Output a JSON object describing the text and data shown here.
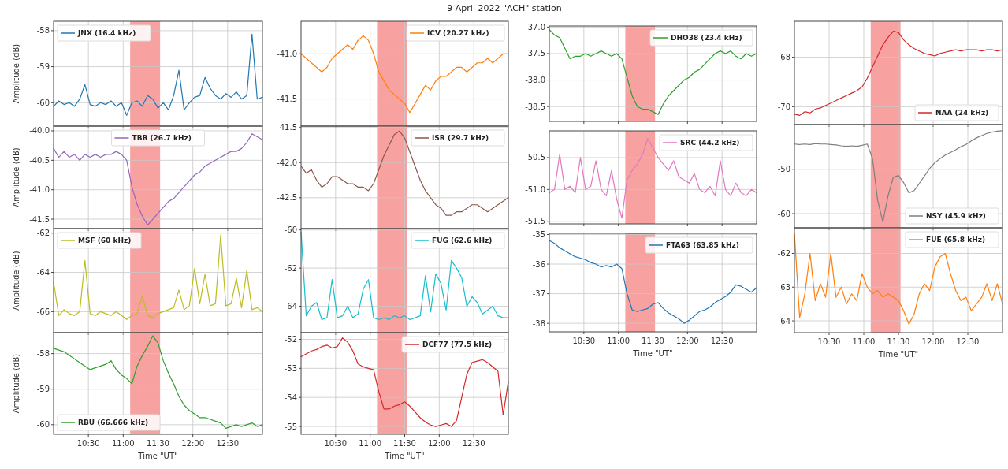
{
  "chart_data": [
    {
      "type": "line",
      "ylabel": "Amplitude (dB)",
      "x": [
        10,
        10.075,
        10.15,
        10.225,
        10.3,
        10.375,
        10.45,
        10.525,
        10.6,
        10.675,
        10.75,
        10.825,
        10.9,
        10.975,
        11.05,
        11.125,
        11.2,
        11.275,
        11.35,
        11.425,
        11.5,
        11.575,
        11.65,
        11.725,
        11.8,
        11.875,
        11.95,
        12.025,
        12.1,
        12.175,
        12.25,
        12.325,
        12.4,
        12.475,
        12.55,
        12.625,
        12.7,
        12.775,
        12.85,
        12.925,
        13.0
      ],
      "xlim": [
        10,
        13
      ],
      "xticks": [
        {
          "value": 10.5,
          "label": null
        },
        {
          "value": 11,
          "label": null
        },
        {
          "value": 11.5,
          "label": null
        },
        {
          "value": 12,
          "label": null
        },
        {
          "value": 12.5,
          "label": null
        }
      ],
      "ylim": [
        -60.65,
        -57.74
      ],
      "yticks": [
        -60,
        -59,
        -58
      ],
      "grid": true,
      "legend": "top left",
      "tick_labels": "y",
      "bands": [
        {
          "axis": "x",
          "from": 11.1,
          "to": 11.53,
          "color": "#f7a1a1"
        }
      ],
      "series": [
        {
          "name": "JNX (16.4 kHz)",
          "color": "#1f77b4",
          "values": [
            -60.1,
            -59.95,
            -60.05,
            -60.0,
            -60.1,
            -59.9,
            -59.5,
            -60.05,
            -60.1,
            -60.0,
            -60.05,
            -59.95,
            -60.1,
            -60.0,
            -60.35,
            -60.0,
            -59.95,
            -60.1,
            -59.8,
            -59.9,
            -60.15,
            -60.0,
            -60.2,
            -59.8,
            -59.1,
            -60.2,
            -60.0,
            -59.85,
            -59.8,
            -59.3,
            -59.6,
            -59.8,
            -59.9,
            -59.75,
            -59.85,
            -59.7,
            -59.9,
            -59.8,
            -58.1,
            -59.9,
            -59.85
          ]
        }
      ]
    },
    {
      "type": "line",
      "ylabel": "Amplitude (dB)",
      "x": [
        10,
        10.075,
        10.15,
        10.225,
        10.3,
        10.375,
        10.45,
        10.525,
        10.6,
        10.675,
        10.75,
        10.825,
        10.9,
        10.975,
        11.05,
        11.125,
        11.2,
        11.275,
        11.35,
        11.425,
        11.5,
        11.575,
        11.65,
        11.725,
        11.8,
        11.875,
        11.95,
        12.025,
        12.1,
        12.175,
        12.25,
        12.325,
        12.4,
        12.475,
        12.55,
        12.625,
        12.7,
        12.775,
        12.85,
        12.925,
        13.0
      ],
      "xlim": [
        10,
        13
      ],
      "xticks": [
        {
          "value": 10.5,
          "label": null
        },
        {
          "value": 11,
          "label": null
        },
        {
          "value": 11.5,
          "label": null
        },
        {
          "value": 12,
          "label": null
        },
        {
          "value": 12.5,
          "label": null
        }
      ],
      "ylim": [
        -41.66,
        -39.92
      ],
      "yticks": [
        -41.5,
        {
          "value": -41,
          "label": "-41.0"
        },
        -40.5,
        {
          "value": -40,
          "label": "-40.0"
        }
      ],
      "grid": true,
      "legend": "top",
      "tick_labels": "y",
      "bands": [
        {
          "axis": "x",
          "from": 11.1,
          "to": 11.53,
          "color": "#f7a1a1"
        }
      ],
      "series": [
        {
          "name": "TBB (26.7 kHz)",
          "color": "#9467bd",
          "values": [
            -40.3,
            -40.45,
            -40.35,
            -40.45,
            -40.4,
            -40.5,
            -40.4,
            -40.45,
            -40.4,
            -40.45,
            -40.4,
            -40.4,
            -40.35,
            -40.4,
            -40.5,
            -40.95,
            -41.25,
            -41.45,
            -41.6,
            -41.5,
            -41.4,
            -41.3,
            -41.2,
            -41.15,
            -41.05,
            -40.95,
            -40.85,
            -40.75,
            -40.7,
            -40.6,
            -40.55,
            -40.5,
            -40.45,
            -40.4,
            -40.35,
            -40.35,
            -40.3,
            -40.2,
            -40.05,
            -40.1,
            -40.15
          ]
        }
      ]
    },
    {
      "type": "line",
      "ylabel": "Amplitude (dB)",
      "x": [
        10,
        10.075,
        10.15,
        10.225,
        10.3,
        10.375,
        10.45,
        10.525,
        10.6,
        10.675,
        10.75,
        10.825,
        10.9,
        10.975,
        11.05,
        11.125,
        11.2,
        11.275,
        11.35,
        11.425,
        11.5,
        11.575,
        11.65,
        11.725,
        11.8,
        11.875,
        11.95,
        12.025,
        12.1,
        12.175,
        12.25,
        12.325,
        12.4,
        12.475,
        12.55,
        12.625,
        12.7,
        12.775,
        12.85,
        12.925,
        13.0
      ],
      "xlim": [
        10,
        13
      ],
      "xticks": [
        {
          "value": 10.5,
          "label": null
        },
        {
          "value": 11,
          "label": null
        },
        {
          "value": 11.5,
          "label": null
        },
        {
          "value": 12,
          "label": null
        },
        {
          "value": 12.5,
          "label": null
        }
      ],
      "ylim": [
        -67.07,
        -61.77
      ],
      "yticks": [
        -66,
        -64,
        -62
      ],
      "grid": true,
      "legend": "top left",
      "tick_labels": "y",
      "bands": [
        {
          "axis": "x",
          "from": 11.1,
          "to": 11.53,
          "color": "#f7a1a1"
        }
      ],
      "series": [
        {
          "name": "MSF (60 kHz)",
          "color": "#bcbd22",
          "values": [
            -64.5,
            -66.2,
            -65.9,
            -66.1,
            -66.2,
            -66.0,
            -63.4,
            -66.1,
            -66.2,
            -66.0,
            -66.1,
            -66.2,
            -66.0,
            -66.2,
            -66.4,
            -66.2,
            -66.1,
            -65.2,
            -66.2,
            -66.3,
            -66.1,
            -66.0,
            -65.9,
            -65.8,
            -64.9,
            -65.9,
            -65.7,
            -63.8,
            -65.6,
            -64.1,
            -65.7,
            -65.6,
            -62.1,
            -65.7,
            -65.6,
            -64.3,
            -65.8,
            -63.9,
            -65.9,
            -65.8,
            -66.0
          ]
        }
      ]
    },
    {
      "type": "line",
      "ylabel": "Amplitude (dB)",
      "xlabel": "Time \"UT\"",
      "x": [
        10,
        10.075,
        10.15,
        10.225,
        10.3,
        10.375,
        10.45,
        10.525,
        10.6,
        10.675,
        10.75,
        10.825,
        10.9,
        10.975,
        11.05,
        11.125,
        11.2,
        11.275,
        11.35,
        11.425,
        11.5,
        11.575,
        11.65,
        11.725,
        11.8,
        11.875,
        11.95,
        12.025,
        12.1,
        12.175,
        12.25,
        12.325,
        12.4,
        12.475,
        12.55,
        12.625,
        12.7,
        12.775,
        12.85,
        12.925,
        13.0
      ],
      "xlim": [
        10,
        13
      ],
      "xticks": [
        {
          "value": 10.5,
          "label": "10:30"
        },
        {
          "value": 11,
          "label": "11:00"
        },
        {
          "value": 11.5,
          "label": "11:30"
        },
        {
          "value": 12,
          "label": "12:00"
        },
        {
          "value": 12.5,
          "label": "12:30"
        }
      ],
      "ylim": [
        -60.27,
        -57.41
      ],
      "yticks": [
        -60,
        -59,
        -58
      ],
      "grid": true,
      "legend": "bottom left",
      "bands": [
        {
          "axis": "x",
          "from": 11.1,
          "to": 11.53,
          "color": "#f7a1a1"
        }
      ],
      "series": [
        {
          "name": "RBU (66.666 kHz)",
          "color": "#2ca02c",
          "values": [
            -57.85,
            -57.9,
            -57.95,
            -58.05,
            -58.15,
            -58.25,
            -58.35,
            -58.45,
            -58.4,
            -58.35,
            -58.3,
            -58.2,
            -58.45,
            -58.6,
            -58.7,
            -58.85,
            -58.35,
            -58.05,
            -57.8,
            -57.5,
            -57.7,
            -58.2,
            -58.55,
            -58.85,
            -59.2,
            -59.45,
            -59.6,
            -59.7,
            -59.8,
            -59.8,
            -59.85,
            -59.9,
            -59.95,
            -60.1,
            -60.05,
            -60.0,
            -60.05,
            -60.0,
            -59.95,
            -60.05,
            -60.0
          ]
        }
      ]
    },
    {
      "type": "line",
      "title": "9 April 2022 \"ACH\" station",
      "x": [
        10,
        10.075,
        10.15,
        10.225,
        10.3,
        10.375,
        10.45,
        10.525,
        10.6,
        10.675,
        10.75,
        10.825,
        10.9,
        10.975,
        11.05,
        11.125,
        11.2,
        11.275,
        11.35,
        11.425,
        11.5,
        11.575,
        11.65,
        11.725,
        11.8,
        11.875,
        11.95,
        12.025,
        12.1,
        12.175,
        12.25,
        12.325,
        12.4,
        12.475,
        12.55,
        12.625,
        12.7,
        12.775,
        12.85,
        12.925,
        13.0
      ],
      "xlim": [
        10,
        13
      ],
      "xticks": [
        {
          "value": 10.5,
          "label": null
        },
        {
          "value": 11,
          "label": null
        },
        {
          "value": 11.5,
          "label": null
        },
        {
          "value": 12,
          "label": null
        },
        {
          "value": 12.5,
          "label": null
        }
      ],
      "ylim": [
        -41.8,
        -40.64
      ],
      "yticks": [
        -41.5,
        {
          "value": -41,
          "label": "-41.0"
        }
      ],
      "grid": true,
      "legend": "top right",
      "tick_labels": "y",
      "bands": [
        {
          "axis": "x",
          "from": 11.1,
          "to": 11.53,
          "color": "#f7a1a1"
        }
      ],
      "series": [
        {
          "name": "ICV (20.27 kHz)",
          "color": "#ff7f0e",
          "values": [
            -41.0,
            -41.05,
            -41.1,
            -41.15,
            -41.2,
            -41.15,
            -41.05,
            -41.0,
            -40.95,
            -40.9,
            -40.95,
            -40.85,
            -40.8,
            -40.85,
            -41.0,
            -41.2,
            -41.3,
            -41.4,
            -41.45,
            -41.5,
            -41.55,
            -41.65,
            -41.55,
            -41.45,
            -41.35,
            -41.4,
            -41.3,
            -41.25,
            -41.25,
            -41.2,
            -41.15,
            -41.15,
            -41.2,
            -41.15,
            -41.1,
            -41.1,
            -41.05,
            -41.1,
            -41.05,
            -41.0,
            -41.0
          ]
        }
      ]
    },
    {
      "type": "line",
      "x": [
        10,
        10.075,
        10.15,
        10.225,
        10.3,
        10.375,
        10.45,
        10.525,
        10.6,
        10.675,
        10.75,
        10.825,
        10.9,
        10.975,
        11.05,
        11.125,
        11.2,
        11.275,
        11.35,
        11.425,
        11.5,
        11.575,
        11.65,
        11.725,
        11.8,
        11.875,
        11.95,
        12.025,
        12.1,
        12.175,
        12.25,
        12.325,
        12.4,
        12.475,
        12.55,
        12.625,
        12.7,
        12.775,
        12.85,
        12.925,
        13.0
      ],
      "xlim": [
        10,
        13
      ],
      "xticks": [
        {
          "value": 10.5,
          "label": null
        },
        {
          "value": 11,
          "label": null
        },
        {
          "value": 11.5,
          "label": null
        },
        {
          "value": 12,
          "label": null
        },
        {
          "value": 12.5,
          "label": null
        }
      ],
      "ylim": [
        -42.94,
        -41.48
      ],
      "yticks": [
        -42.5,
        {
          "value": -42,
          "label": "-42.0"
        },
        -41.5
      ],
      "grid": true,
      "legend": "top right",
      "tick_labels": "y",
      "bands": [
        {
          "axis": "x",
          "from": 11.1,
          "to": 11.53,
          "color": "#f7a1a1"
        }
      ],
      "series": [
        {
          "name": "ISR (29.7 kHz)",
          "color": "#8c564b",
          "values": [
            -42.05,
            -42.15,
            -42.1,
            -42.25,
            -42.35,
            -42.3,
            -42.2,
            -42.2,
            -42.25,
            -42.3,
            -42.3,
            -42.35,
            -42.35,
            -42.4,
            -42.3,
            -42.1,
            -41.9,
            -41.75,
            -41.6,
            -41.55,
            -41.65,
            -41.85,
            -42.05,
            -42.25,
            -42.4,
            -42.5,
            -42.6,
            -42.65,
            -42.75,
            -42.75,
            -42.7,
            -42.7,
            -42.65,
            -42.6,
            -42.6,
            -42.65,
            -42.7,
            -42.65,
            -42.6,
            -42.55,
            -42.5
          ]
        }
      ]
    },
    {
      "type": "line",
      "x": [
        10,
        10.075,
        10.15,
        10.225,
        10.3,
        10.375,
        10.45,
        10.525,
        10.6,
        10.675,
        10.75,
        10.825,
        10.9,
        10.975,
        11.05,
        11.125,
        11.2,
        11.275,
        11.35,
        11.425,
        11.5,
        11.575,
        11.65,
        11.725,
        11.8,
        11.875,
        11.95,
        12.025,
        12.1,
        12.175,
        12.25,
        12.325,
        12.4,
        12.475,
        12.55,
        12.625,
        12.7,
        12.775,
        12.85,
        12.925,
        13.0
      ],
      "xlim": [
        10,
        13
      ],
      "xticks": [
        {
          "value": 10.5,
          "label": null
        },
        {
          "value": 11,
          "label": null
        },
        {
          "value": 11.5,
          "label": null
        },
        {
          "value": 12,
          "label": null
        },
        {
          "value": 12.5,
          "label": null
        }
      ],
      "ylim": [
        -65.38,
        -59.93
      ],
      "yticks": [
        -64,
        -62,
        -60
      ],
      "grid": true,
      "legend": "top right",
      "tick_labels": "y",
      "bands": [
        {
          "axis": "x",
          "from": 11.1,
          "to": 11.53,
          "color": "#f7a1a1"
        }
      ],
      "series": [
        {
          "name": "FUG (62.6 kHz)",
          "color": "#17becf",
          "values": [
            -60.1,
            -64.5,
            -64.0,
            -63.8,
            -64.7,
            -64.6,
            -62.6,
            -64.6,
            -64.5,
            -64.0,
            -64.6,
            -64.4,
            -63.1,
            -62.6,
            -64.6,
            -64.7,
            -64.6,
            -64.7,
            -64.5,
            -64.6,
            -64.5,
            -64.7,
            -64.6,
            -64.5,
            -62.4,
            -64.3,
            -62.3,
            -62.8,
            -64.2,
            -61.6,
            -62.0,
            -62.5,
            -64.0,
            -63.5,
            -63.8,
            -64.4,
            -64.2,
            -64.0,
            -64.5,
            -64.6,
            -64.6
          ]
        }
      ]
    },
    {
      "type": "line",
      "xlabel": "Time \"UT\"",
      "x": [
        10,
        10.075,
        10.15,
        10.225,
        10.3,
        10.375,
        10.45,
        10.525,
        10.6,
        10.675,
        10.75,
        10.825,
        10.9,
        10.975,
        11.05,
        11.125,
        11.2,
        11.275,
        11.35,
        11.425,
        11.5,
        11.575,
        11.65,
        11.725,
        11.8,
        11.875,
        11.95,
        12.025,
        12.1,
        12.175,
        12.25,
        12.325,
        12.4,
        12.475,
        12.55,
        12.625,
        12.7,
        12.775,
        12.85,
        12.925,
        13.0
      ],
      "xlim": [
        10,
        13
      ],
      "xticks": [
        {
          "value": 10.5,
          "label": "10:30"
        },
        {
          "value": 11,
          "label": "11:00"
        },
        {
          "value": 11.5,
          "label": "11:30"
        },
        {
          "value": 12,
          "label": "12:00"
        },
        {
          "value": 12.5,
          "label": "12:30"
        }
      ],
      "ylim": [
        -55.27,
        -51.77
      ],
      "yticks": [
        -55,
        -54,
        -53,
        -52
      ],
      "grid": true,
      "legend": "top right",
      "bands": [
        {
          "axis": "x",
          "from": 11.1,
          "to": 11.53,
          "color": "#f7a1a1"
        }
      ],
      "series": [
        {
          "name": "DCF77 (77.5 kHz)",
          "color": "#d62728",
          "values": [
            -52.6,
            -52.5,
            -52.4,
            -52.35,
            -52.25,
            -52.2,
            -52.3,
            -52.25,
            -51.95,
            -52.1,
            -52.4,
            -52.85,
            -52.95,
            -53.0,
            -53.05,
            -53.8,
            -54.4,
            -54.4,
            -54.3,
            -54.25,
            -54.15,
            -54.3,
            -54.5,
            -54.7,
            -54.85,
            -54.95,
            -55.0,
            -54.95,
            -54.9,
            -55.0,
            -54.8,
            -54.0,
            -53.2,
            -52.8,
            -52.75,
            -52.7,
            -52.8,
            -52.95,
            -53.1,
            -54.6,
            -53.45
          ]
        }
      ]
    },
    {
      "type": "line",
      "x": [
        10,
        10.075,
        10.15,
        10.225,
        10.3,
        10.375,
        10.45,
        10.525,
        10.6,
        10.675,
        10.75,
        10.825,
        10.9,
        10.975,
        11.05,
        11.125,
        11.2,
        11.275,
        11.35,
        11.425,
        11.5,
        11.575,
        11.65,
        11.725,
        11.8,
        11.875,
        11.95,
        12.025,
        12.1,
        12.175,
        12.25,
        12.325,
        12.4,
        12.475,
        12.55,
        12.625,
        12.7,
        12.775,
        12.85,
        12.925,
        13.0
      ],
      "xlim": [
        10,
        13
      ],
      "xticks": [
        {
          "value": 10.5,
          "label": null
        },
        {
          "value": 11,
          "label": null
        },
        {
          "value": 11.5,
          "label": null
        },
        {
          "value": 12,
          "label": null
        },
        {
          "value": 12.5,
          "label": null
        }
      ],
      "ylim": [
        -38.78,
        -36.98
      ],
      "yticks": [
        -38.5,
        {
          "value": -38,
          "label": "-38.0"
        },
        -37.5,
        {
          "value": -37,
          "label": "-37.0"
        }
      ],
      "grid": true,
      "legend": "top right",
      "tick_labels": "y",
      "bands": [
        {
          "axis": "x",
          "from": 11.1,
          "to": 11.53,
          "color": "#f7a1a1"
        }
      ],
      "series": [
        {
          "name": "DHO38 (23.4 kHz)",
          "color": "#2ca02c",
          "values": [
            -37.05,
            -37.15,
            -37.2,
            -37.4,
            -37.6,
            -37.55,
            -37.55,
            -37.5,
            -37.55,
            -37.5,
            -37.45,
            -37.5,
            -37.55,
            -37.5,
            -37.6,
            -37.95,
            -38.3,
            -38.5,
            -38.55,
            -38.55,
            -38.6,
            -38.65,
            -38.45,
            -38.3,
            -38.2,
            -38.1,
            -38.0,
            -37.95,
            -37.85,
            -37.8,
            -37.7,
            -37.6,
            -37.5,
            -37.45,
            -37.5,
            -37.45,
            -37.55,
            -37.6,
            -37.5,
            -37.55,
            -37.5
          ]
        }
      ]
    },
    {
      "type": "line",
      "x": [
        10,
        10.075,
        10.15,
        10.225,
        10.3,
        10.375,
        10.45,
        10.525,
        10.6,
        10.675,
        10.75,
        10.825,
        10.9,
        10.975,
        11.05,
        11.125,
        11.2,
        11.275,
        11.35,
        11.425,
        11.5,
        11.575,
        11.65,
        11.725,
        11.8,
        11.875,
        11.95,
        12.025,
        12.1,
        12.175,
        12.25,
        12.325,
        12.4,
        12.475,
        12.55,
        12.625,
        12.7,
        12.775,
        12.85,
        12.925,
        13.0
      ],
      "xlim": [
        10,
        13
      ],
      "xticks": [
        {
          "value": 10.5,
          "label": null
        },
        {
          "value": 11,
          "label": null
        },
        {
          "value": 11.5,
          "label": null
        },
        {
          "value": 12,
          "label": null
        },
        {
          "value": 12.5,
          "label": null
        }
      ],
      "ylim": [
        -51.54,
        -50.08
      ],
      "yticks": [
        -51.5,
        {
          "value": -51,
          "label": "-51.0"
        },
        -50.5
      ],
      "grid": true,
      "legend": "top right",
      "tick_labels": "y",
      "bands": [
        {
          "axis": "x",
          "from": 11.1,
          "to": 11.53,
          "color": "#f7a1a1"
        }
      ],
      "series": [
        {
          "name": "SRC (44.2 kHz)",
          "color": "#e377c2",
          "values": [
            -51.05,
            -51.0,
            -50.45,
            -51.0,
            -50.95,
            -51.05,
            -50.5,
            -51.0,
            -50.95,
            -50.55,
            -51.0,
            -51.1,
            -50.7,
            -51.15,
            -51.45,
            -50.85,
            -50.7,
            -50.6,
            -50.45,
            -50.2,
            -50.35,
            -50.5,
            -50.6,
            -50.7,
            -50.55,
            -50.8,
            -50.85,
            -50.9,
            -50.75,
            -51.0,
            -51.05,
            -50.95,
            -51.1,
            -50.55,
            -51.0,
            -51.1,
            -50.9,
            -51.05,
            -51.1,
            -51.0,
            -51.05
          ]
        }
      ]
    },
    {
      "type": "line",
      "xlabel": "Time \"UT\"",
      "x": [
        10,
        10.075,
        10.15,
        10.225,
        10.3,
        10.375,
        10.45,
        10.525,
        10.6,
        10.675,
        10.75,
        10.825,
        10.9,
        10.975,
        11.05,
        11.125,
        11.2,
        11.275,
        11.35,
        11.425,
        11.5,
        11.575,
        11.65,
        11.725,
        11.8,
        11.875,
        11.95,
        12.025,
        12.1,
        12.175,
        12.25,
        12.325,
        12.4,
        12.475,
        12.55,
        12.625,
        12.7,
        12.775,
        12.85,
        12.925,
        13.0
      ],
      "xlim": [
        10,
        13
      ],
      "xticks": [
        {
          "value": 10.5,
          "label": "10:30"
        },
        {
          "value": 11,
          "label": "11:00"
        },
        {
          "value": 11.5,
          "label": "11:30"
        },
        {
          "value": 12,
          "label": "12:00"
        },
        {
          "value": 12.5,
          "label": "12:30"
        }
      ],
      "ylim": [
        -38.29,
        -34.96
      ],
      "yticks": [
        -38,
        -37,
        -36,
        -35
      ],
      "grid": true,
      "legend": "top right",
      "bands": [
        {
          "axis": "x",
          "from": 11.1,
          "to": 11.53,
          "color": "#f7a1a1"
        }
      ],
      "series": [
        {
          "name": "FTA63 (63.85 kHz)",
          "color": "#1f77b4",
          "values": [
            -35.2,
            -35.3,
            -35.45,
            -35.55,
            -35.65,
            -35.75,
            -35.8,
            -35.85,
            -35.95,
            -36.0,
            -36.1,
            -36.05,
            -36.1,
            -36.0,
            -36.15,
            -37.0,
            -37.55,
            -37.6,
            -37.55,
            -37.5,
            -37.35,
            -37.3,
            -37.5,
            -37.65,
            -37.75,
            -37.85,
            -38.0,
            -37.9,
            -37.75,
            -37.6,
            -37.55,
            -37.45,
            -37.3,
            -37.2,
            -37.1,
            -36.95,
            -36.7,
            -36.75,
            -36.85,
            -36.95,
            -36.8
          ]
        }
      ]
    },
    {
      "type": "line",
      "x": [
        10,
        10.075,
        10.15,
        10.225,
        10.3,
        10.375,
        10.45,
        10.525,
        10.6,
        10.675,
        10.75,
        10.825,
        10.9,
        10.975,
        11.05,
        11.125,
        11.2,
        11.275,
        11.35,
        11.425,
        11.5,
        11.575,
        11.65,
        11.725,
        11.8,
        11.875,
        11.95,
        12.025,
        12.1,
        12.175,
        12.25,
        12.325,
        12.4,
        12.475,
        12.55,
        12.625,
        12.7,
        12.775,
        12.85,
        12.925,
        13.0
      ],
      "xlim": [
        10,
        13
      ],
      "xticks": [
        {
          "value": 10.5,
          "label": null
        },
        {
          "value": 11,
          "label": null
        },
        {
          "value": 11.5,
          "label": null
        },
        {
          "value": 12,
          "label": null
        },
        {
          "value": 12.5,
          "label": null
        }
      ],
      "ylim": [
        -70.72,
        -66.55
      ],
      "yticks": [
        -70,
        -68
      ],
      "grid": true,
      "legend": "bottom right",
      "tick_labels": "y",
      "bands": [
        {
          "axis": "x",
          "from": 11.1,
          "to": 11.53,
          "color": "#f7a1a1"
        }
      ],
      "series": [
        {
          "name": "NAA (24 kHz)",
          "color": "#d62728",
          "values": [
            -70.3,
            -70.35,
            -70.2,
            -70.25,
            -70.1,
            -70.05,
            -69.95,
            -69.85,
            -69.75,
            -69.65,
            -69.55,
            -69.45,
            -69.35,
            -69.2,
            -68.85,
            -68.4,
            -67.95,
            -67.5,
            -67.2,
            -66.95,
            -67.0,
            -67.3,
            -67.5,
            -67.65,
            -67.75,
            -67.85,
            -67.9,
            -67.95,
            -67.85,
            -67.8,
            -67.75,
            -67.7,
            -67.75,
            -67.7,
            -67.7,
            -67.7,
            -67.75,
            -67.7,
            -67.7,
            -67.75,
            -67.7
          ]
        }
      ]
    },
    {
      "type": "line",
      "x": [
        10,
        10.075,
        10.15,
        10.225,
        10.3,
        10.375,
        10.45,
        10.525,
        10.6,
        10.675,
        10.75,
        10.825,
        10.9,
        10.975,
        11.05,
        11.125,
        11.2,
        11.275,
        11.35,
        11.425,
        11.5,
        11.575,
        11.65,
        11.725,
        11.8,
        11.875,
        11.95,
        12.025,
        12.1,
        12.175,
        12.25,
        12.325,
        12.4,
        12.475,
        12.55,
        12.625,
        12.7,
        12.775,
        12.85,
        12.925,
        13.0
      ],
      "xlim": [
        10,
        13
      ],
      "xticks": [
        {
          "value": 10.5,
          "label": null
        },
        {
          "value": 11,
          "label": null
        },
        {
          "value": 11.5,
          "label": null
        },
        {
          "value": 12,
          "label": null
        },
        {
          "value": 12.5,
          "label": null
        }
      ],
      "ylim": [
        -63.2,
        -39.9
      ],
      "yticks": [
        -60,
        -50
      ],
      "grid": true,
      "legend": "bottom right",
      "tick_labels": "y",
      "bands": [
        {
          "axis": "x",
          "from": 11.1,
          "to": 11.53,
          "color": "#f7a1a1"
        }
      ],
      "series": [
        {
          "name": "NSY (45.9 kHz)",
          "color": "#7f7f7f",
          "values": [
            -44.3,
            -44.4,
            -44.3,
            -44.4,
            -44.2,
            -44.3,
            -44.3,
            -44.4,
            -44.5,
            -44.7,
            -44.8,
            -44.7,
            -44.8,
            -44.6,
            -44.3,
            -47.5,
            -57.0,
            -61.9,
            -56.0,
            -51.8,
            -51.4,
            -53.0,
            -55.3,
            -54.8,
            -53.2,
            -51.5,
            -49.8,
            -48.5,
            -47.6,
            -46.8,
            -46.2,
            -45.6,
            -44.9,
            -44.4,
            -43.6,
            -42.9,
            -42.4,
            -41.9,
            -41.6,
            -41.4,
            -41.3
          ]
        }
      ]
    },
    {
      "type": "line",
      "xlabel": "Time \"UT\"",
      "x": [
        10,
        10.075,
        10.15,
        10.225,
        10.3,
        10.375,
        10.45,
        10.525,
        10.6,
        10.675,
        10.75,
        10.825,
        10.9,
        10.975,
        11.05,
        11.125,
        11.2,
        11.275,
        11.35,
        11.425,
        11.5,
        11.575,
        11.65,
        11.725,
        11.8,
        11.875,
        11.95,
        12.025,
        12.1,
        12.175,
        12.25,
        12.325,
        12.4,
        12.475,
        12.55,
        12.625,
        12.7,
        12.775,
        12.85,
        12.925,
        13.0
      ],
      "xlim": [
        10,
        13
      ],
      "xticks": [
        {
          "value": 10.5,
          "label": "10:30"
        },
        {
          "value": 11,
          "label": "11:00"
        },
        {
          "value": 11.5,
          "label": "11:30"
        },
        {
          "value": 12,
          "label": "12:00"
        },
        {
          "value": 12.5,
          "label": "12:30"
        }
      ],
      "ylim": [
        -64.35,
        -61.24
      ],
      "yticks": [
        -64,
        -63,
        -62
      ],
      "grid": true,
      "legend": "top right",
      "bands": [
        {
          "axis": "x",
          "from": 11.1,
          "to": 11.53,
          "color": "#f7a1a1"
        }
      ],
      "series": [
        {
          "name": "FUE (65.8 kHz)",
          "color": "#ff7f0e",
          "values": [
            -61.4,
            -63.9,
            -63.2,
            -62.0,
            -63.4,
            -62.9,
            -63.3,
            -62.0,
            -63.3,
            -63.0,
            -63.5,
            -63.2,
            -63.4,
            -62.6,
            -63.0,
            -63.2,
            -63.1,
            -63.3,
            -63.2,
            -63.3,
            -63.4,
            -63.7,
            -64.1,
            -63.8,
            -63.2,
            -62.9,
            -63.1,
            -62.4,
            -62.1,
            -62.0,
            -62.6,
            -63.1,
            -63.4,
            -63.3,
            -63.7,
            -63.5,
            -63.3,
            -62.9,
            -63.4,
            -62.9,
            -63.5
          ]
        }
      ]
    }
  ]
}
